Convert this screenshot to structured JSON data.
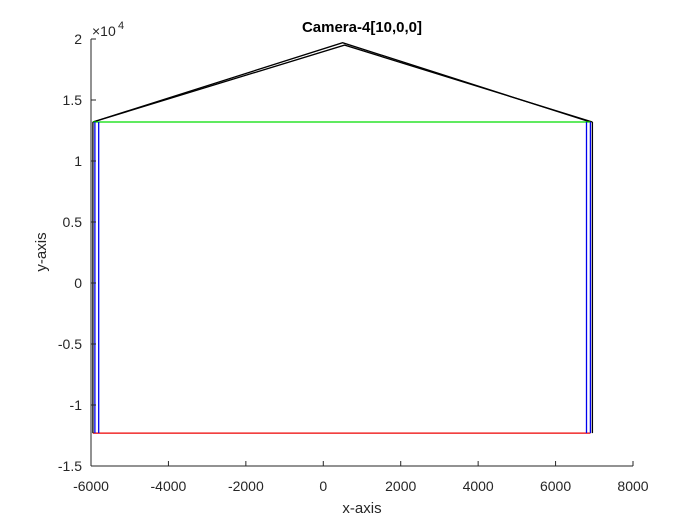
{
  "chart_data": {
    "type": "line",
    "title": "Camera-4[10,0,0]",
    "xlabel": "x-axis",
    "ylabel": "y-axis",
    "xlim": [
      -6000,
      8000
    ],
    "ylim": [
      -15000,
      20000
    ],
    "x_ticks": [
      -6000,
      -4000,
      -2000,
      0,
      2000,
      4000,
      6000,
      8000
    ],
    "x_tick_labels": [
      "-6000",
      "-4000",
      "-2000",
      "0",
      "2000",
      "4000",
      "6000",
      "8000"
    ],
    "y_ticks": [
      -15000,
      -10000,
      -5000,
      0,
      5000,
      10000,
      15000,
      20000
    ],
    "y_tick_labels": [
      "-1.5",
      "-1",
      "-0.5",
      "0",
      "0.5",
      "1",
      "1.5",
      "2"
    ],
    "y_exponent_label": {
      "base": "×10",
      "power": "4"
    },
    "grid": false,
    "series": [
      {
        "color": "#000000",
        "x": [
          -5950,
          500,
          6900
        ],
        "y": [
          13200,
          19700,
          13200
        ]
      },
      {
        "color": "#000000",
        "x": [
          -5950,
          550,
          6950
        ],
        "y": [
          13200,
          19500,
          13200
        ]
      },
      {
        "color": "#00dd00",
        "x": [
          -5950,
          6900
        ],
        "y": [
          13200,
          13200
        ]
      },
      {
        "color": "#ee0000",
        "x": [
          -5950,
          6900
        ],
        "y": [
          -12300,
          -12300
        ]
      },
      {
        "color": "#0000ee",
        "x": [
          -5900,
          -5900
        ],
        "y": [
          13200,
          -12300
        ]
      },
      {
        "color": "#0000ee",
        "x": [
          6900,
          6900
        ],
        "y": [
          13200,
          -12300
        ]
      },
      {
        "color": "#0000ee",
        "x": [
          -5800,
          -5800
        ],
        "y": [
          13200,
          -12300
        ]
      },
      {
        "color": "#0000ee",
        "x": [
          6800,
          6800
        ],
        "y": [
          13200,
          -12300
        ]
      },
      {
        "color": "#000000",
        "x": [
          -5950,
          -5950
        ],
        "y": [
          13200,
          -12300
        ]
      },
      {
        "color": "#000000",
        "x": [
          6950,
          6950
        ],
        "y": [
          13200,
          -12300
        ]
      }
    ]
  }
}
